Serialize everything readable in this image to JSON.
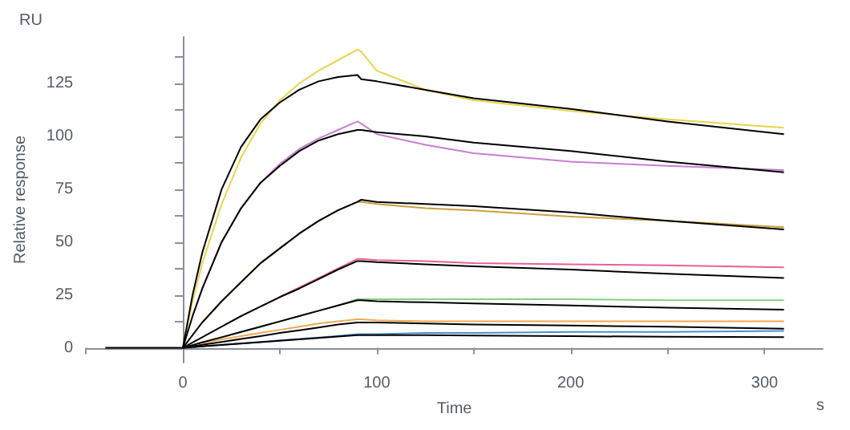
{
  "chart_data": {
    "type": "line",
    "xlabel": "Time",
    "ylabel": "Relative response",
    "annotations": [
      "RU",
      "s"
    ],
    "x": [
      -40,
      0,
      5,
      10,
      20,
      30,
      40,
      50,
      60,
      70,
      80,
      90,
      92,
      100,
      125,
      150,
      200,
      250,
      310
    ],
    "xlim": [
      -50,
      330
    ],
    "xticks": [
      {
        "value": -50,
        "label": null
      },
      0,
      {
        "value": 50,
        "label": null
      },
      100,
      {
        "value": 150,
        "label": null
      },
      200,
      {
        "value": 250,
        "label": null
      },
      300
    ],
    "ylim": [
      -7,
      147
    ],
    "yticks": [
      0,
      {
        "value": 12.5,
        "label": null
      },
      25,
      {
        "value": 37.5,
        "label": null
      },
      50,
      {
        "value": 62.5,
        "label": null
      },
      75,
      {
        "value": 87.5,
        "label": null
      },
      100,
      {
        "value": 112.5,
        "label": null
      },
      125,
      {
        "value": 137.5,
        "label": null
      }
    ],
    "marker": "none",
    "line_style": "solid",
    "series": [
      {
        "color": "#e8d44a",
        "values": [
          null,
          0,
          22,
          40,
          68,
          90,
          106,
          117,
          125,
          131,
          136,
          141,
          140,
          131,
          122,
          117,
          112,
          108,
          104
        ]
      },
      {
        "color": "#c77fd0",
        "values": [
          null,
          null,
          15,
          28,
          50,
          66,
          78,
          87,
          94,
          99,
          103,
          107,
          106,
          101,
          96,
          92,
          88,
          86,
          84
        ]
      },
      {
        "color": "#c9a040",
        "values": [
          null,
          null,
          null,
          12,
          22,
          31,
          40,
          47,
          54,
          60,
          65,
          69,
          69,
          68,
          66,
          65,
          62,
          60,
          57
        ]
      },
      {
        "color": "#e8609a",
        "values": [
          null,
          null,
          null,
          null,
          null,
          null,
          19.5,
          24,
          28.5,
          33,
          37.5,
          42,
          42,
          41.5,
          41,
          40,
          39.5,
          39,
          38
        ]
      },
      {
        "color": "#88cc88",
        "values": [
          null,
          null,
          1.3,
          2.6,
          5,
          7.5,
          10,
          12.5,
          15,
          17.5,
          20,
          23,
          23,
          23,
          23,
          23,
          23,
          22.5,
          22.5
        ]
      },
      {
        "color": "#f0a850",
        "values": [
          null,
          null,
          null,
          2.2,
          4,
          5.5,
          7,
          8.5,
          10,
          11.5,
          12.5,
          13.5,
          13.5,
          13,
          12.5,
          12.5,
          12.5,
          12.5,
          12.5
        ]
      },
      {
        "color": "#4a90d0",
        "values": [
          null,
          null,
          0.4,
          0.7,
          1.4,
          2.1,
          2.8,
          3.5,
          4.2,
          4.9,
          5.6,
          6.5,
          6.5,
          6.5,
          7,
          7,
          7.5,
          7.5,
          8
        ]
      },
      {
        "color": "#000000",
        "values": [
          null,
          0,
          25,
          45,
          75,
          95,
          108,
          116,
          122,
          126,
          128,
          129,
          127,
          126,
          122,
          118,
          113,
          107,
          101
        ]
      },
      {
        "color": "#000000",
        "values": [
          null,
          0,
          15,
          28,
          50,
          66,
          78,
          86,
          93,
          98,
          101,
          103,
          103,
          102,
          100,
          97,
          93,
          88,
          83
        ]
      },
      {
        "color": "#000000",
        "values": [
          null,
          0,
          6,
          12,
          22,
          31,
          40,
          47,
          54,
          60,
          65,
          69,
          70,
          69,
          68,
          67,
          64,
          60,
          56
        ]
      },
      {
        "color": "#000000",
        "values": [
          null,
          0,
          2.5,
          5,
          10,
          15,
          19.5,
          24,
          28,
          32.5,
          37,
          41,
          41,
          40.5,
          39.5,
          38.5,
          37,
          35,
          33
        ]
      },
      {
        "color": "#000000",
        "values": [
          null,
          0,
          1.3,
          2.6,
          5,
          7.5,
          10,
          12.5,
          15,
          17.5,
          20,
          22.5,
          22.5,
          22,
          21.5,
          21,
          20,
          19,
          18
        ]
      },
      {
        "color": "#000000",
        "values": [
          null,
          0,
          0.7,
          1.4,
          2.8,
          4.2,
          5.5,
          7,
          8.3,
          9.6,
          11,
          12,
          12,
          12,
          11.5,
          11,
          10.5,
          10,
          9
        ]
      },
      {
        "color": "#000000",
        "values": [
          0,
          0,
          0.3,
          0.7,
          1.3,
          2,
          2.7,
          3.3,
          4,
          4.7,
          5.3,
          6,
          6,
          6,
          6,
          5.8,
          5.5,
          5.2,
          5
        ]
      }
    ]
  }
}
